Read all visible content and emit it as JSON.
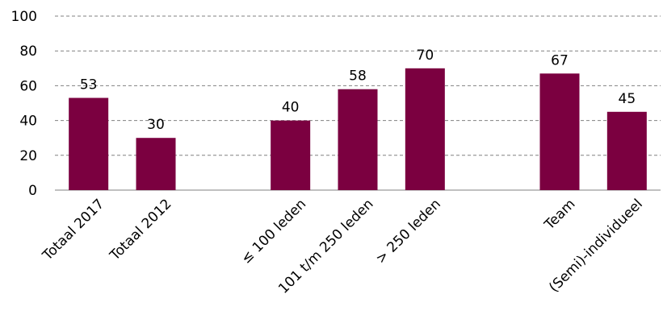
{
  "chart_data": {
    "type": "bar",
    "categories": [
      "Totaal 2017",
      "Totaal 2012",
      "",
      "≤ 100 leden",
      "101 t/m 250 leden",
      "> 250 leden",
      "",
      "Team",
      "(Semi)-individueel"
    ],
    "values": [
      53,
      30,
      null,
      40,
      58,
      70,
      null,
      67,
      45
    ],
    "ylim": [
      0,
      100
    ],
    "yticks": [
      0,
      20,
      40,
      60,
      80,
      100
    ],
    "grid": true,
    "legend": "none",
    "title": "",
    "xlabel": "",
    "ylabel": "",
    "colors": {
      "bar": "#7b0040"
    }
  }
}
